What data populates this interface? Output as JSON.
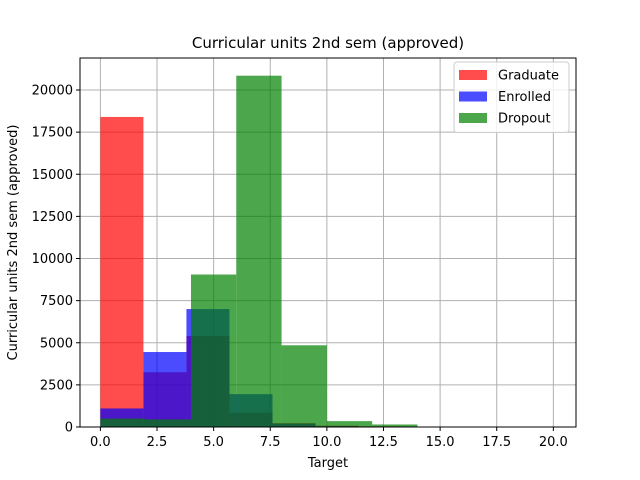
{
  "chart_data": {
    "type": "bar",
    "title": "Curricular units 2nd sem (approved)",
    "xlabel": "Target",
    "ylabel": "Curricular units 2nd sem (approved)",
    "xlim": [
      -0.9,
      21.0
    ],
    "ylim": [
      0,
      21900
    ],
    "xticks": [
      "0.0",
      "2.5",
      "5.0",
      "7.5",
      "10.0",
      "12.5",
      "15.0",
      "17.5",
      "20.0"
    ],
    "yticks": [
      "0",
      "2500",
      "5000",
      "7500",
      "10000",
      "12500",
      "15000",
      "17500",
      "20000"
    ],
    "grid": true,
    "legend_position": "top-right",
    "series": [
      {
        "name": "Graduate",
        "color": "#ff0000",
        "alpha": 0.7,
        "bins": [
          {
            "x0": 0.0,
            "x1": 1.9,
            "value": 18400
          },
          {
            "x0": 1.9,
            "x1": 3.8,
            "value": 3250
          },
          {
            "x0": 3.8,
            "x1": 5.7,
            "value": 5400
          },
          {
            "x0": 5.7,
            "x1": 7.6,
            "value": 850
          },
          {
            "x0": 7.6,
            "x1": 9.5,
            "value": 230
          },
          {
            "x0": 9.5,
            "x1": 11.4,
            "value": 80
          },
          {
            "x0": 11.4,
            "x1": 13.3,
            "value": 40
          }
        ]
      },
      {
        "name": "Enrolled",
        "color": "#0000ff",
        "alpha": 0.7,
        "bins": [
          {
            "x0": 0.0,
            "x1": 1.9,
            "value": 1100
          },
          {
            "x0": 1.9,
            "x1": 3.8,
            "value": 4450
          },
          {
            "x0": 3.8,
            "x1": 5.7,
            "value": 7000
          },
          {
            "x0": 5.7,
            "x1": 7.6,
            "value": 1950
          },
          {
            "x0": 7.6,
            "x1": 9.5,
            "value": 200
          },
          {
            "x0": 9.5,
            "x1": 11.4,
            "value": 50
          }
        ]
      },
      {
        "name": "Dropout",
        "color": "#008000",
        "alpha": 0.7,
        "bins": [
          {
            "x0": 0.0,
            "x1": 2.0,
            "value": 500
          },
          {
            "x0": 2.0,
            "x1": 4.0,
            "value": 450
          },
          {
            "x0": 4.0,
            "x1": 6.0,
            "value": 9050
          },
          {
            "x0": 6.0,
            "x1": 8.0,
            "value": 20850
          },
          {
            "x0": 8.0,
            "x1": 10.0,
            "value": 4850
          },
          {
            "x0": 10.0,
            "x1": 12.0,
            "value": 350
          },
          {
            "x0": 12.0,
            "x1": 14.0,
            "value": 150
          }
        ]
      }
    ]
  }
}
